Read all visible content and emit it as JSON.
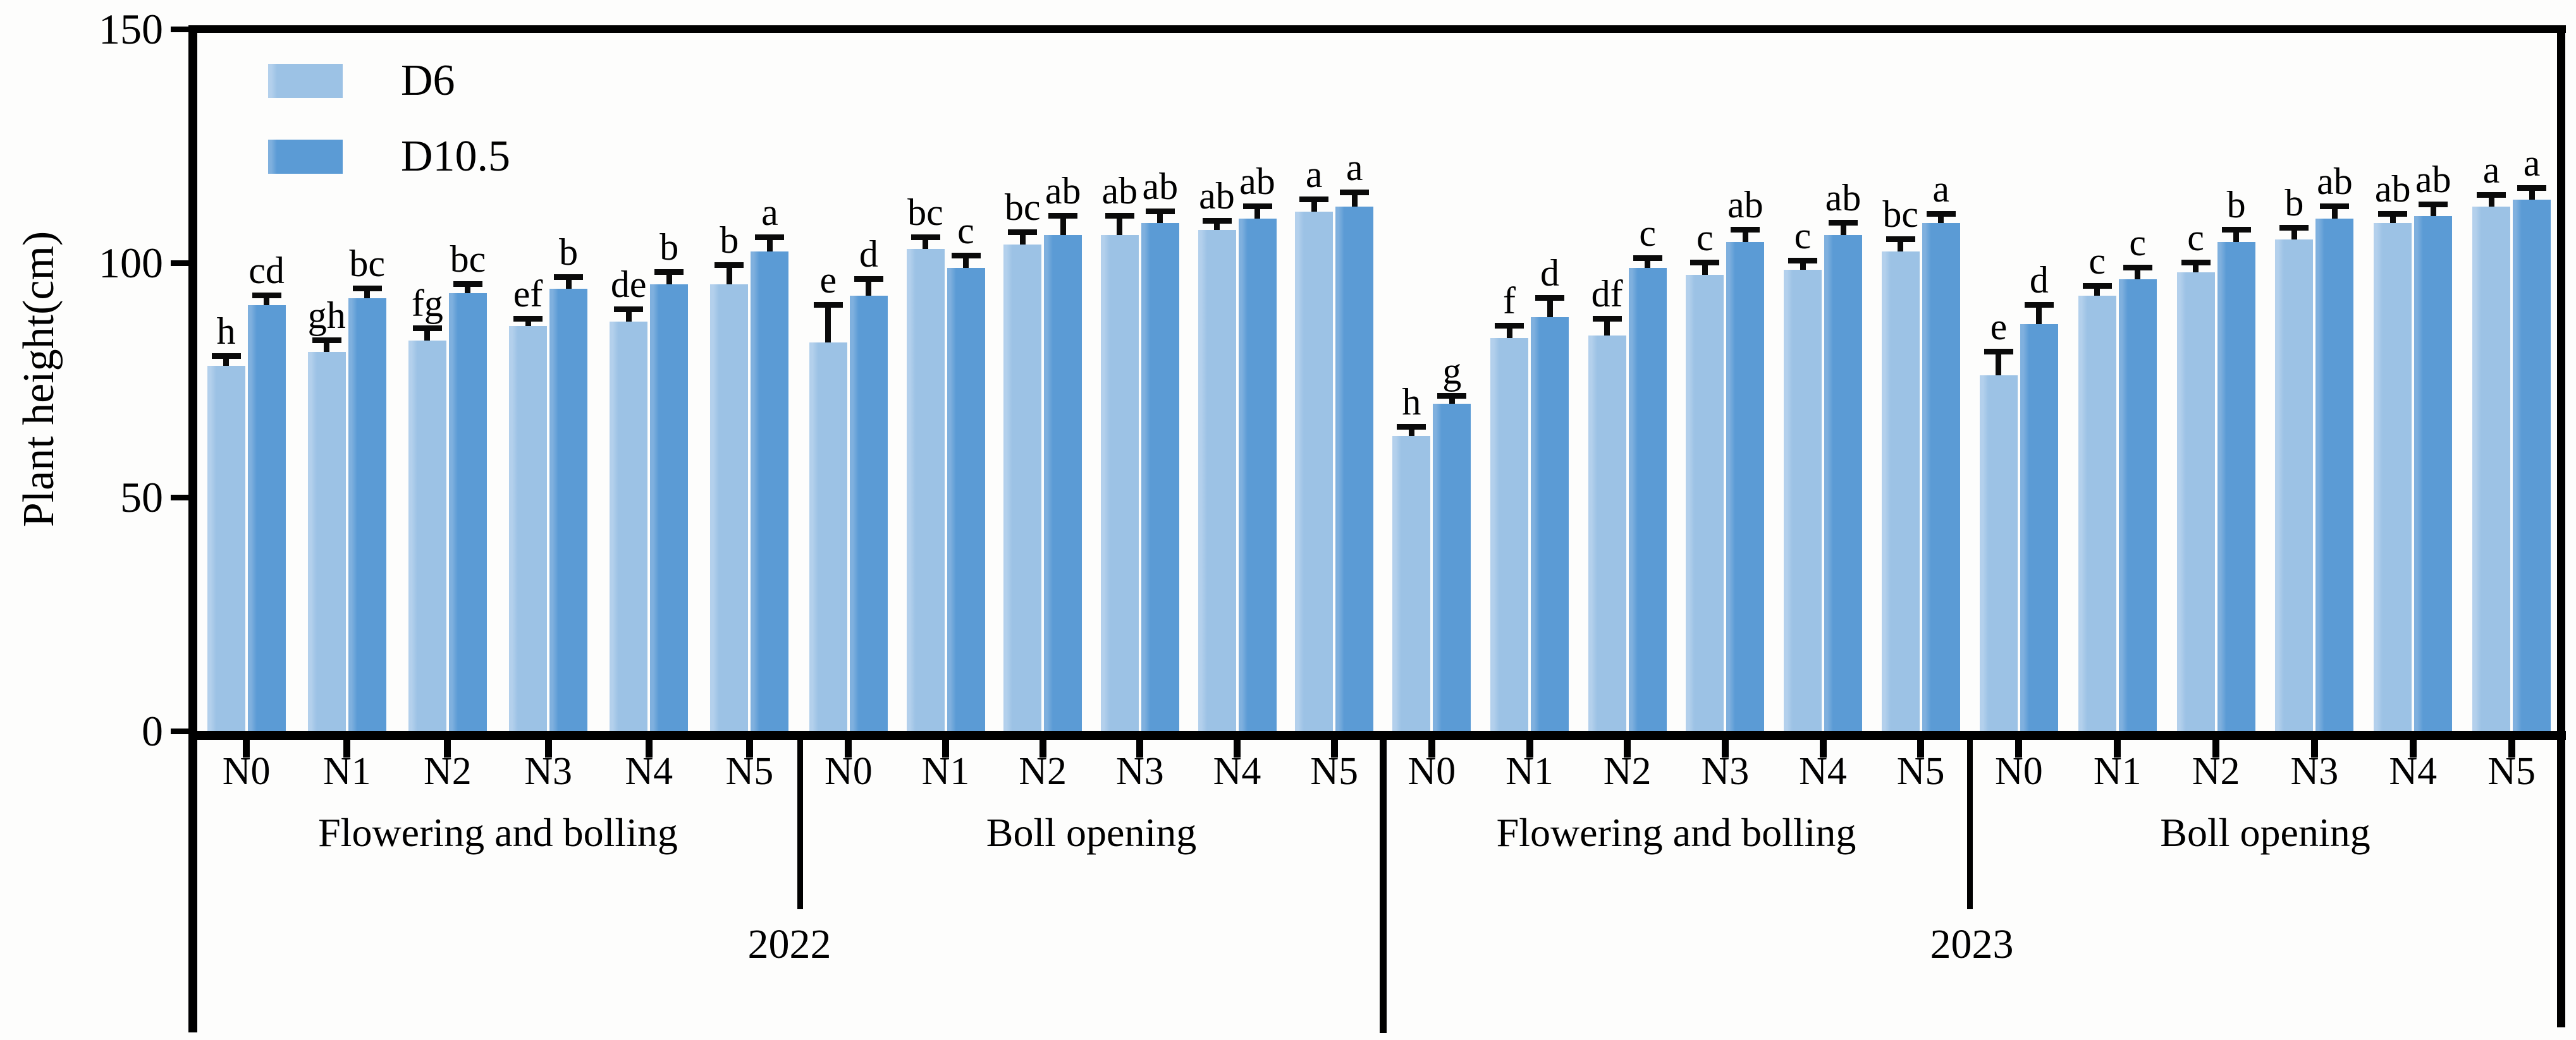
{
  "chart_data": {
    "type": "bar",
    "title": "",
    "ylabel": "Plant height(cm)",
    "xlabel": "",
    "ylim": [
      0,
      150
    ],
    "yticks": [
      0,
      50,
      100,
      150
    ],
    "grid": false,
    "legend_position": "inside-top-left",
    "categories": [
      "N0",
      "N1",
      "N2",
      "N3",
      "N4",
      "N5"
    ],
    "series_meta": [
      {
        "name": "D6",
        "color": "#9CC2E5"
      },
      {
        "name": "D10.5",
        "color": "#5B9BD5"
      }
    ],
    "year_labels": [
      "2022",
      "2023"
    ],
    "groups": [
      {
        "year": "2022",
        "stage": "Flowering and bolling",
        "series": [
          {
            "name": "D6",
            "values": [
              78,
              81,
              83.5,
              86.5,
              87.5,
              95.5
            ],
            "errors": [
              2,
              2.5,
              2.5,
              1.5,
              2.5,
              4
            ],
            "letters": [
              "h",
              "gh",
              "fg",
              "ef",
              "de",
              "b"
            ]
          },
          {
            "name": "D10.5",
            "values": [
              91,
              92.5,
              93.5,
              94.5,
              95.5,
              102.5
            ],
            "errors": [
              2,
              2,
              2,
              2.5,
              2.5,
              3
            ],
            "letters": [
              "cd",
              "bc",
              "bc",
              "b",
              "b",
              "a"
            ]
          }
        ]
      },
      {
        "year": "2022",
        "stage": "Boll opening",
        "series": [
          {
            "name": "D6",
            "values": [
              83,
              103,
              104,
              106,
              107,
              111
            ],
            "errors": [
              8,
              2.5,
              2.5,
              4,
              2,
              2.5
            ],
            "letters": [
              "e",
              "bc",
              "bc",
              "ab",
              "ab",
              "a"
            ]
          },
          {
            "name": "D10.5",
            "values": [
              93,
              99,
              106,
              108.5,
              109.5,
              112
            ],
            "errors": [
              3.5,
              2.5,
              4,
              2.5,
              2.5,
              3
            ],
            "letters": [
              "d",
              "c",
              "ab",
              "ab",
              "ab",
              "a"
            ]
          }
        ]
      },
      {
        "year": "2023",
        "stage": "Flowering and bolling",
        "series": [
          {
            "name": "D6",
            "values": [
              63,
              84,
              84.5,
              97.5,
              98.5,
              102.5
            ],
            "errors": [
              2,
              2.5,
              3.5,
              2.5,
              2,
              2.5
            ],
            "letters": [
              "h",
              "f",
              "df",
              "c",
              "c",
              "bc"
            ]
          },
          {
            "name": "D10.5",
            "values": [
              70,
              88.5,
              99,
              104.5,
              106,
              108.5
            ],
            "errors": [
              1.5,
              4,
              2,
              2.5,
              2.5,
              2
            ],
            "letters": [
              "g",
              "d",
              "c",
              "ab",
              "ab",
              "a"
            ]
          }
        ]
      },
      {
        "year": "2023",
        "stage": "Boll opening",
        "series": [
          {
            "name": "D6",
            "values": [
              76,
              93,
              98,
              105,
              108.5,
              112
            ],
            "errors": [
              5,
              2,
              2,
              2.5,
              2,
              2.5
            ],
            "letters": [
              "e",
              "c",
              "c",
              "b",
              "ab",
              "a"
            ]
          },
          {
            "name": "D10.5",
            "values": [
              87,
              96.5,
              104.5,
              109.5,
              110,
              113.5
            ],
            "errors": [
              4,
              2.5,
              2.5,
              2.5,
              2.5,
              2.5
            ],
            "letters": [
              "d",
              "c",
              "b",
              "ab",
              "ab",
              "a"
            ]
          }
        ]
      }
    ]
  }
}
